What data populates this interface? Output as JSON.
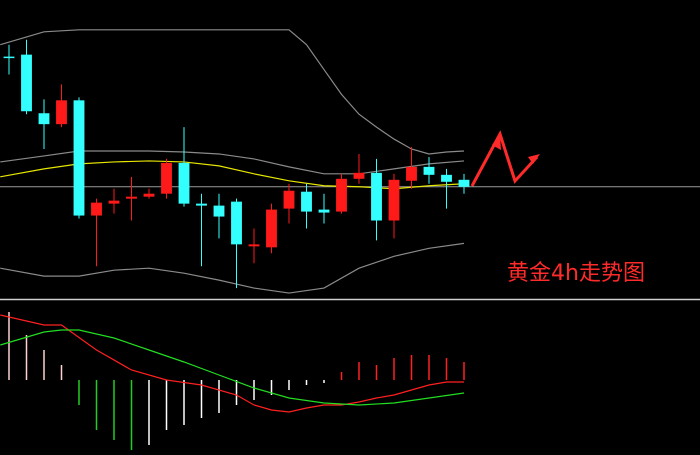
{
  "chart_data": [
    {
      "type": "candlestick",
      "annotation": "黄金4h走势图",
      "x": [
        0,
        1,
        2,
        3,
        4,
        5,
        6,
        7,
        8,
        9,
        10,
        11,
        12,
        13,
        14,
        15,
        16,
        17,
        18,
        19,
        20,
        21,
        22,
        23,
        24,
        25,
        26
      ],
      "open": [
        243,
        245,
        186,
        175,
        199,
        83,
        95,
        100,
        102,
        105,
        136,
        95,
        93,
        97,
        52,
        51,
        90,
        107,
        89,
        87,
        120,
        126,
        78,
        118,
        132,
        124,
        119
      ],
      "high": [
        255,
        260,
        200,
        215,
        202,
        100,
        110,
        122,
        110,
        140,
        172,
        105,
        105,
        100,
        70,
        95,
        115,
        115,
        105,
        125,
        145,
        140,
        125,
        152,
        142,
        130,
        125
      ],
      "low": [
        225,
        185,
        150,
        172,
        80,
        32,
        85,
        78,
        100,
        100,
        92,
        32,
        60,
        10,
        35,
        45,
        75,
        70,
        75,
        85,
        115,
        58,
        60,
        110,
        115,
        90,
        105
      ],
      "close": [
        242,
        188,
        175,
        199,
        83,
        96,
        98,
        102,
        105,
        136,
        95,
        93,
        82,
        54,
        54,
        89,
        108,
        87,
        86,
        120,
        126,
        78,
        119,
        132,
        124,
        117,
        112
      ],
      "up_color": "#ff1a1a",
      "down_color": "#33ffff",
      "xlim": [
        -0.5,
        26.5
      ],
      "ylim": [
        0,
        300
      ],
      "hline": 112,
      "lines": [
        {
          "color": "#8a8a8a",
          "x": [
            -0.5,
            2,
            4,
            6,
            8,
            10,
            12,
            14,
            16,
            17,
            18,
            19,
            20,
            21,
            22,
            23,
            24,
            25,
            26
          ],
          "values": [
            255,
            268,
            270,
            270,
            270,
            270,
            270,
            270,
            270,
            255,
            230,
            205,
            185,
            172,
            160,
            150,
            145,
            147,
            148
          ]
        },
        {
          "color": "#8a8a8a",
          "x": [
            -0.5,
            2,
            4,
            6,
            8,
            10,
            12,
            14,
            16,
            18,
            20,
            22,
            24,
            26
          ],
          "values": [
            137,
            143,
            148,
            148,
            148,
            147,
            145,
            140,
            132,
            125,
            125,
            130,
            135,
            138
          ]
        },
        {
          "color": "#8a8a8a",
          "x": [
            -0.5,
            2,
            4,
            6,
            8,
            10,
            12,
            14,
            16,
            18,
            20,
            22,
            24,
            26
          ],
          "values": [
            30,
            22,
            22,
            28,
            30,
            25,
            18,
            10,
            5,
            10,
            30,
            42,
            50,
            55
          ]
        },
        {
          "color": "#e6e600",
          "x": [
            -0.5,
            2,
            4,
            6,
            8,
            10,
            12,
            14,
            16,
            18,
            20,
            22,
            24,
            26
          ],
          "values": [
            122,
            130,
            135,
            137,
            138,
            137,
            133,
            125,
            118,
            113,
            112,
            110,
            113,
            115
          ]
        }
      ]
    },
    {
      "type": "macd",
      "x": [
        0,
        1,
        2,
        3,
        4,
        5,
        6,
        7,
        8,
        9,
        10,
        11,
        12,
        13,
        14,
        15,
        16,
        17,
        18,
        19,
        20,
        21,
        22,
        23,
        24,
        25,
        26
      ],
      "values": [
        68,
        45,
        30,
        15,
        -25,
        -50,
        -60,
        -70,
        -65,
        -50,
        -45,
        -38,
        -33,
        -25,
        -20,
        -15,
        -10,
        -5,
        -3,
        8,
        18,
        15,
        22,
        25,
        25,
        22,
        18
      ],
      "bar_colors": [
        "#ffd0d0",
        "#ffd0d0",
        "#ffd0d0",
        "#ffd0d0",
        "#22cc22",
        "#22cc22",
        "#22cc22",
        "#22cc22",
        "#ffffff",
        "#ffffff",
        "#ffffff",
        "#ffffff",
        "#ffffff",
        "#ffffff",
        "#ffffff",
        "#ffffff",
        "#ffffff",
        "#ffffff",
        "#ffffff",
        "#ff2020",
        "#ff2020",
        "#ff2020",
        "#ff2020",
        "#ff2020",
        "#ff2020",
        "#ff2020",
        "#ff2020"
      ],
      "xlim": [
        -0.5,
        26.5
      ],
      "ylim": [
        -75,
        80
      ],
      "lines": [
        {
          "color": "#ff2020",
          "x": [
            -0.5,
            2,
            3,
            5,
            7,
            9,
            11,
            13,
            14,
            15,
            16,
            17,
            18,
            19,
            20,
            21,
            22,
            23,
            24,
            25,
            26
          ],
          "values": [
            65,
            55,
            55,
            30,
            10,
            0,
            -5,
            -15,
            -25,
            -30,
            -32,
            -28,
            -25,
            -25,
            -22,
            -18,
            -15,
            -10,
            -5,
            -2,
            -2
          ]
        },
        {
          "color": "#22dd22",
          "x": [
            -0.5,
            2,
            3,
            4,
            6,
            8,
            10,
            12,
            14,
            16,
            18,
            20,
            22,
            24,
            26
          ],
          "values": [
            35,
            48,
            50,
            50,
            42,
            30,
            18,
            5,
            -8,
            -18,
            -23,
            -25,
            -23,
            -18,
            -13
          ]
        }
      ]
    }
  ]
}
